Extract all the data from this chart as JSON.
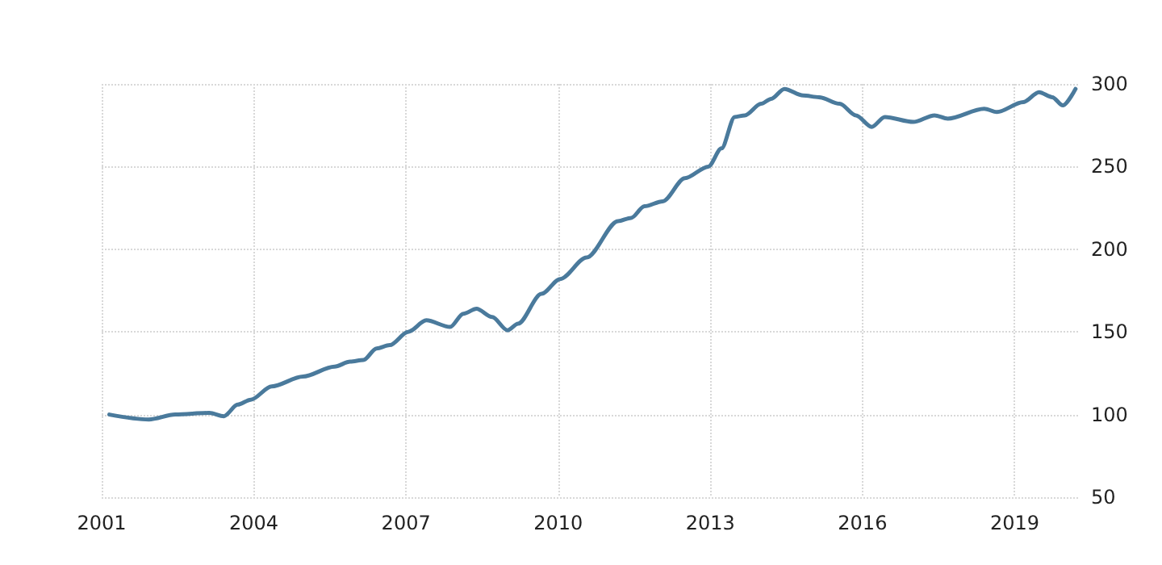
{
  "chart_data": {
    "type": "line",
    "x": [
      2001.15,
      2001.93,
      2002.45,
      2003.12,
      2003.41,
      2003.68,
      2003.94,
      2004.35,
      2004.97,
      2005.59,
      2005.9,
      2006.16,
      2006.42,
      2006.68,
      2007.04,
      2007.4,
      2007.87,
      2008.13,
      2008.39,
      2008.7,
      2009.0,
      2009.21,
      2009.67,
      2010.04,
      2010.56,
      2011.18,
      2011.44,
      2011.7,
      2012.06,
      2012.5,
      2012.96,
      2013.22,
      2013.48,
      2013.68,
      2014.0,
      2014.2,
      2014.46,
      2014.83,
      2015.14,
      2015.55,
      2015.87,
      2016.18,
      2016.44,
      2017.0,
      2017.42,
      2017.68,
      2018.4,
      2018.65,
      2019.17,
      2019.48,
      2019.74,
      2019.95,
      2020.2
    ],
    "series": [
      {
        "color": "#4a7a9c",
        "values": [
          100,
          97,
          100,
          101,
          99,
          106,
          109,
          117,
          123,
          129,
          132,
          133,
          140,
          142,
          150,
          157,
          153,
          161,
          164,
          159,
          151,
          155,
          173,
          182,
          195,
          217,
          219,
          226,
          229,
          243,
          250,
          261,
          280,
          281,
          288,
          291,
          297,
          293,
          292,
          288,
          281,
          274,
          280,
          277,
          281,
          279,
          285,
          283,
          289,
          295,
          292,
          287,
          297
        ]
      }
    ],
    "xlim": [
      2001,
      2020.25
    ],
    "xticks": [
      2001,
      2004,
      2007,
      2010,
      2013,
      2016,
      2019
    ],
    "ylim": [
      50,
      300
    ],
    "yticks": [
      50,
      100,
      150,
      200,
      250,
      300
    ],
    "grid": true,
    "marker": "none",
    "line_style": "solid"
  }
}
